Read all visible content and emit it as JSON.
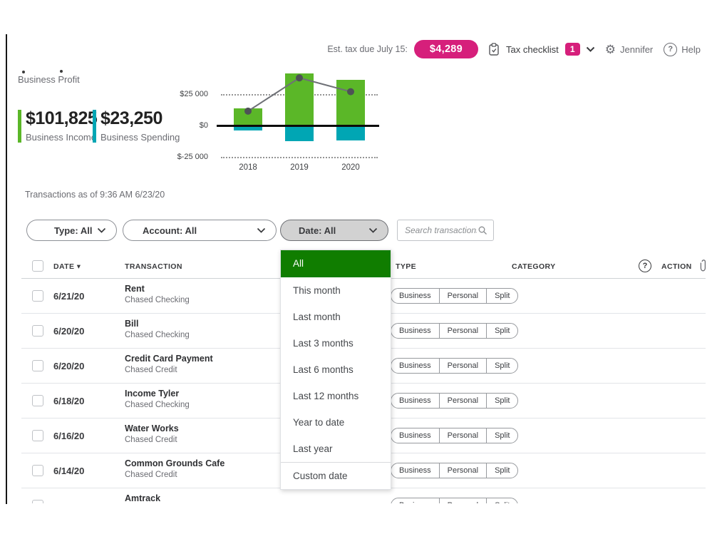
{
  "topbar": {
    "est_tax_label": "Est. tax due July 15:",
    "est_tax_amount": "$4,289",
    "tax_checklist_label": "Tax checklist",
    "tax_checklist_count": "1",
    "user_name": "Jennifer",
    "help_label": "Help",
    "icons": {
      "clipboard": "tax-checklist-clipboard",
      "gear": "⚙",
      "help_glyph": "?"
    }
  },
  "profit_section": {
    "title": "Business Profit",
    "income_value": "$101,825",
    "income_label": "Business Income",
    "spending_value": "$23,250",
    "spending_label": "Business Spending"
  },
  "chart_data": {
    "type": "bar",
    "subtype": "grouped income/spending bars with profit line overlay",
    "title": "Business Profit",
    "categories": [
      "2018",
      "2019",
      "2020"
    ],
    "series": [
      {
        "name": "Business Income",
        "type": "bar",
        "color": "#5bb728",
        "values": [
          14000,
          42000,
          37000
        ]
      },
      {
        "name": "Business Spending",
        "type": "bar",
        "color": "#00a6b4",
        "values": [
          -3000,
          -11500,
          -11000
        ]
      },
      {
        "name": "Profit",
        "type": "line",
        "color": "#6e7076",
        "values": [
          12000,
          38500,
          27500
        ]
      }
    ],
    "yticks": [
      {
        "label": "$25 000",
        "value": 25000
      },
      {
        "label": "$0",
        "value": 0
      },
      {
        "label": "$-25 000",
        "value": -25000
      }
    ],
    "ylim": [
      -30000,
      47500
    ],
    "grid": "dotted horizontal lines at +25000 and -25000, solid black axis at 0",
    "legend": "none"
  },
  "transactions": {
    "as_of": "Transactions as of 9:36 AM 6/23/20",
    "filters": {
      "type": "Type: All",
      "account": "Account: All",
      "date": "Date: All"
    },
    "search_placeholder": "Search transactions",
    "date_menu": {
      "selected": "All",
      "items": [
        "All",
        "This month",
        "Last month",
        "Last 3 months",
        "Last 6 months",
        "Last 12 months",
        "Year to date",
        "Last year",
        "Custom date"
      ]
    },
    "table": {
      "headers": {
        "date": "DATE",
        "date_sort": "▾",
        "transaction": "TRANSACTION",
        "type": "TYPE",
        "category": "CATEGORY",
        "action": "ACTION",
        "help_glyph": "?"
      },
      "type_options": [
        "Business",
        "Personal",
        "Split"
      ],
      "rows": [
        {
          "date": "6/21/20",
          "name": "Rent",
          "account": "Chased Checking"
        },
        {
          "date": "6/20/20",
          "name": "Bill",
          "account": "Chased Checking"
        },
        {
          "date": "6/20/20",
          "name": "Credit Card Payment",
          "account": "Chased Credit"
        },
        {
          "date": "6/18/20",
          "name": "Income Tyler",
          "account": "Chased Checking"
        },
        {
          "date": "6/16/20",
          "name": "Water Works",
          "account": "Chased Credit"
        },
        {
          "date": "6/14/20",
          "name": "Common Grounds Cafe",
          "account": "Chased Credit"
        },
        {
          "date": "",
          "name": "Amtrack",
          "account": ""
        }
      ]
    }
  },
  "colors": {
    "accent_green": "#5bb728",
    "accent_teal": "#00a6b4",
    "menu_selected_green": "#107d00",
    "pink": "#d61f7b",
    "text_dark": "#393a3d",
    "text_gray": "#6b6c72",
    "profit_line": "#6e7076",
    "profit_dot": "#4e5256"
  }
}
